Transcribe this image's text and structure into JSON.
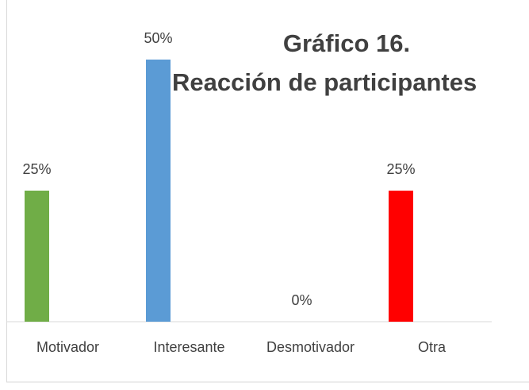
{
  "chart_data": {
    "type": "bar",
    "title": "Gráfico 16.",
    "subtitle": "Reacción de participantes",
    "categories": [
      "Motivador",
      "Interesante",
      "Desmotivador",
      "Otra"
    ],
    "values": [
      25,
      50,
      0,
      25
    ],
    "value_labels": [
      "25%",
      "50%",
      "0%",
      "25%"
    ],
    "colors": [
      "#70ad47",
      "#5b9bd5",
      "#a5a5a5",
      "#ff0000"
    ]
  }
}
